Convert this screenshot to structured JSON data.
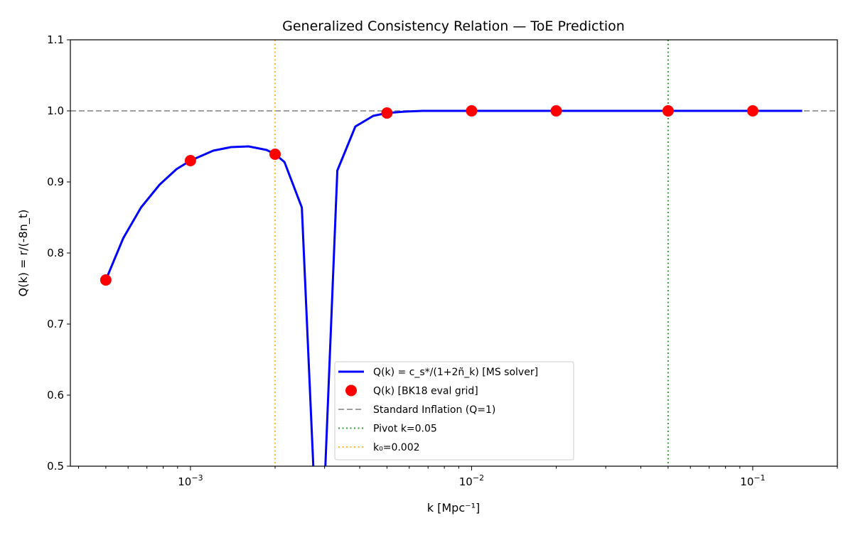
{
  "chart_data": {
    "type": "line",
    "title": "Generalized Consistency Relation — ToE Prediction",
    "xlabel": "k [Mpc⁻¹]",
    "ylabel": "Q(k) = r/(-8n_t)",
    "xscale": "log",
    "xlim": [
      0.000374,
      0.2
    ],
    "ylim": [
      0.5,
      1.1
    ],
    "yticks": [
      "0.5",
      "0.6",
      "0.7",
      "0.8",
      "0.9",
      "1.0",
      "1.1"
    ],
    "xticks": [
      {
        "base": "10",
        "exp": "−3",
        "value": 0.001
      },
      {
        "base": "10",
        "exp": "−2",
        "value": 0.01
      },
      {
        "base": "10",
        "exp": "−1",
        "value": 0.1
      }
    ],
    "series": [
      {
        "name": "Q(k) = c_s*/(1+2ñ_k) [MS solver]",
        "color": "#0000ff",
        "style": "solid",
        "x": [
          0.0005,
          0.000577,
          0.000667,
          0.000776,
          0.000892,
          0.001,
          0.001205,
          0.001394,
          0.00161,
          0.001865,
          0.002,
          0.00216,
          0.00249,
          0.00288,
          0.00333,
          0.00386,
          0.00447,
          0.005,
          0.0058,
          0.0067,
          0.008,
          0.01,
          0.015,
          0.02,
          0.03,
          0.05,
          0.07,
          0.1,
          0.15
        ],
        "y": [
          0.762,
          0.821,
          0.864,
          0.896,
          0.918,
          0.93,
          0.944,
          0.949,
          0.95,
          0.945,
          0.939,
          0.928,
          0.864,
          0.3,
          0.916,
          0.978,
          0.993,
          0.997,
          0.999,
          1.0,
          1.0,
          1.0,
          1.0,
          1.0,
          1.0,
          1.0,
          1.0,
          1.0,
          1.0
        ]
      },
      {
        "name": "Q(k) [BK18 eval grid]",
        "color": "#ff0000",
        "style": "markers",
        "x": [
          0.0005,
          0.001,
          0.002,
          0.005,
          0.01,
          0.02,
          0.05,
          0.1
        ],
        "y": [
          0.762,
          0.93,
          0.939,
          0.997,
          1.0,
          1.0,
          1.0,
          1.0
        ]
      },
      {
        "name": "Standard Inflation (Q=1)",
        "color": "#a0a0a0",
        "style": "dashed",
        "hline": 1.0
      },
      {
        "name": "Pivot k=0.05",
        "color": "#2ca02c",
        "style": "dotted",
        "vline": 0.05
      },
      {
        "name": "k₀=0.002",
        "color": "#ffb732",
        "style": "dotted",
        "vline": 0.002
      }
    ],
    "legend_position": "lower-center",
    "grid": false
  }
}
